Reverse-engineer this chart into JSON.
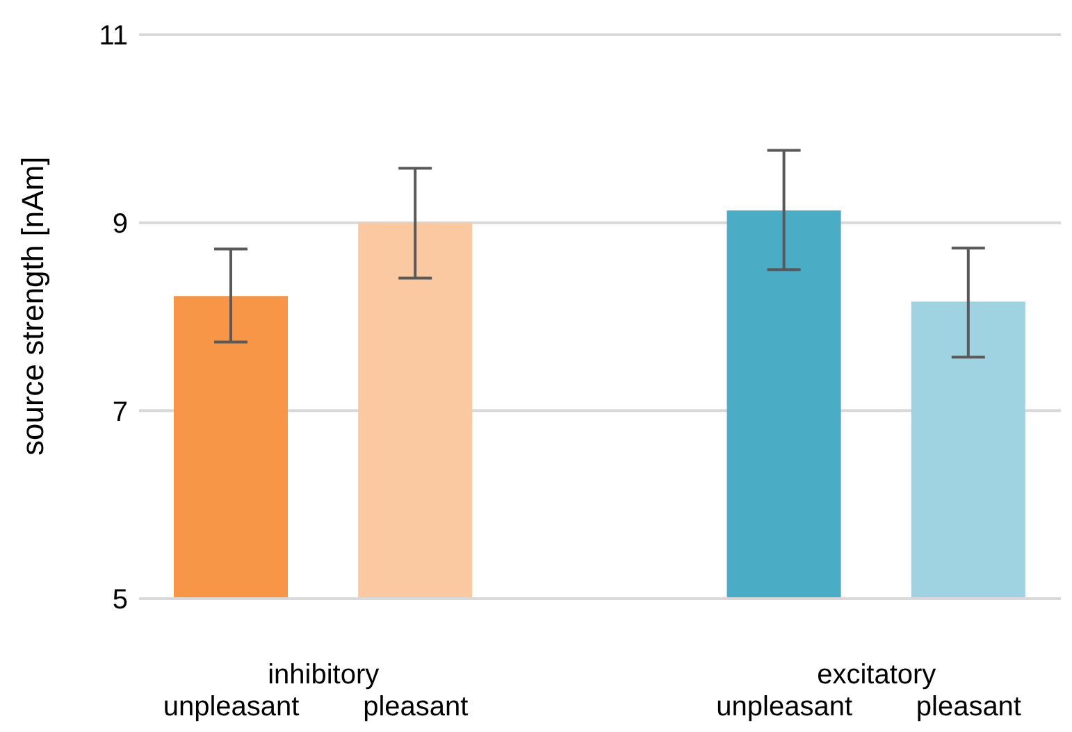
{
  "chart_data": {
    "type": "bar",
    "ylabel": "source strength [nAm]",
    "categories": [
      "unpleasant",
      "pleasant",
      null,
      "unpleasant",
      "pleasant"
    ],
    "values": [
      8.22,
      9.0,
      null,
      9.13,
      8.16
    ],
    "colors": [
      "#f79646",
      "#fac9a2",
      null,
      "#4bacc6",
      "#9fd3e2"
    ],
    "errors": [
      [
        7.73,
        8.72
      ],
      [
        8.41,
        9.58
      ],
      null,
      [
        8.5,
        9.77
      ],
      [
        7.57,
        8.73
      ]
    ],
    "annotations": [
      "inhibitory",
      "excitatory"
    ],
    "ylim": [
      5,
      11
    ],
    "yticks": [
      5,
      7,
      9,
      11
    ],
    "grid": "y"
  }
}
